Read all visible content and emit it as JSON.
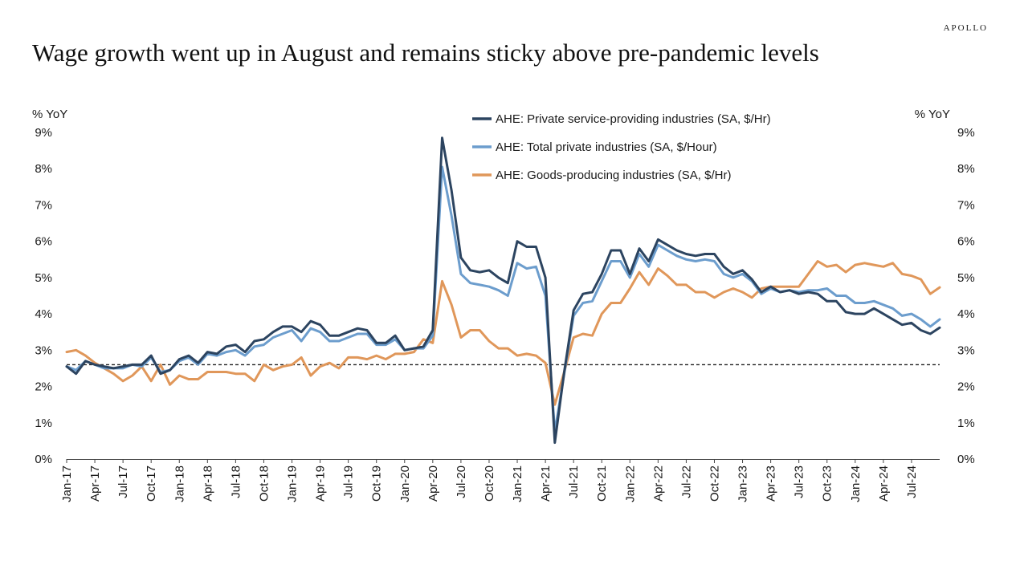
{
  "brand": "APOLLO",
  "title": "Wage growth went up in August and remains sticky above pre-pandemic levels",
  "chart_data": {
    "type": "line",
    "ylabel_left": "% YoY",
    "ylabel_right": "% YoY",
    "ylim": [
      0,
      9
    ],
    "yticks": [
      "0%",
      "1%",
      "2%",
      "3%",
      "4%",
      "5%",
      "6%",
      "7%",
      "8%",
      "9%"
    ],
    "xtick_labels": [
      "Jan-17",
      "Apr-17",
      "Jul-17",
      "Oct-17",
      "Jan-18",
      "Apr-18",
      "Jul-18",
      "Oct-18",
      "Jan-19",
      "Apr-19",
      "Jul-19",
      "Oct-19",
      "Jan-20",
      "Apr-20",
      "Jul-20",
      "Oct-20",
      "Jan-21",
      "Apr-21",
      "Jul-21",
      "Oct-21",
      "Jan-22",
      "Apr-22",
      "Jul-22",
      "Oct-22",
      "Jan-23",
      "Apr-23",
      "Jul-23",
      "Oct-23",
      "Jan-24",
      "Apr-24",
      "Jul-24"
    ],
    "x_start": "Jan-17",
    "x_end": "Aug-24",
    "reference_line": {
      "value": 2.6,
      "style": "dashed"
    },
    "legend_position": "top-center",
    "series": [
      {
        "name": "AHE: Private service-providing industries (SA, $/Hr)",
        "color": "#2c4460",
        "values": [
          2.55,
          2.35,
          2.7,
          2.6,
          2.55,
          2.5,
          2.55,
          2.6,
          2.6,
          2.85,
          2.35,
          2.45,
          2.75,
          2.85,
          2.65,
          2.95,
          2.9,
          3.1,
          3.15,
          2.95,
          3.25,
          3.3,
          3.5,
          3.65,
          3.65,
          3.5,
          3.8,
          3.7,
          3.4,
          3.4,
          3.5,
          3.6,
          3.55,
          3.2,
          3.2,
          3.4,
          3.0,
          3.05,
          3.1,
          3.55,
          8.85,
          7.4,
          5.55,
          5.2,
          5.15,
          5.2,
          5.0,
          4.85,
          6.0,
          5.85,
          5.85,
          5.0,
          0.45,
          2.4,
          4.1,
          4.55,
          4.6,
          5.1,
          5.75,
          5.75,
          5.1,
          5.8,
          5.45,
          6.05,
          5.9,
          5.75,
          5.65,
          5.6,
          5.65,
          5.65,
          5.3,
          5.1,
          5.2,
          4.95,
          4.6,
          4.75,
          4.6,
          4.65,
          4.55,
          4.6,
          4.55,
          4.35,
          4.35,
          4.05,
          4.0,
          4.0,
          4.15,
          4.0,
          3.85,
          3.7,
          3.75,
          3.55,
          3.45,
          3.62
        ]
      },
      {
        "name": "AHE: Total private industries (SA, $/Hour)",
        "color": "#6c9dcd",
        "values": [
          2.55,
          2.45,
          2.7,
          2.6,
          2.5,
          2.5,
          2.5,
          2.6,
          2.55,
          2.8,
          2.4,
          2.45,
          2.7,
          2.8,
          2.6,
          2.9,
          2.85,
          2.95,
          3.0,
          2.85,
          3.1,
          3.15,
          3.35,
          3.45,
          3.55,
          3.25,
          3.6,
          3.5,
          3.25,
          3.25,
          3.35,
          3.45,
          3.45,
          3.15,
          3.15,
          3.3,
          3.0,
          3.05,
          3.05,
          3.4,
          8.05,
          6.7,
          5.1,
          4.85,
          4.8,
          4.75,
          4.65,
          4.5,
          5.4,
          5.25,
          5.3,
          4.5,
          0.75,
          2.35,
          3.95,
          4.3,
          4.35,
          4.9,
          5.45,
          5.45,
          5.0,
          5.65,
          5.3,
          5.9,
          5.75,
          5.6,
          5.5,
          5.45,
          5.5,
          5.45,
          5.1,
          5.0,
          5.1,
          4.9,
          4.55,
          4.7,
          4.6,
          4.65,
          4.6,
          4.65,
          4.65,
          4.7,
          4.5,
          4.5,
          4.3,
          4.3,
          4.35,
          4.25,
          4.15,
          3.95,
          4.0,
          3.85,
          3.65,
          3.85
        ]
      },
      {
        "name": "AHE: Goods-producing industries (SA, $/Hr)",
        "color": "#e0975a",
        "values": [
          2.95,
          3.0,
          2.85,
          2.65,
          2.5,
          2.35,
          2.15,
          2.3,
          2.55,
          2.15,
          2.6,
          2.05,
          2.3,
          2.2,
          2.2,
          2.4,
          2.4,
          2.4,
          2.35,
          2.35,
          2.15,
          2.6,
          2.45,
          2.55,
          2.6,
          2.8,
          2.3,
          2.55,
          2.65,
          2.5,
          2.8,
          2.8,
          2.75,
          2.85,
          2.75,
          2.9,
          2.9,
          2.95,
          3.3,
          3.2,
          4.9,
          4.25,
          3.35,
          3.55,
          3.55,
          3.25,
          3.05,
          3.05,
          2.85,
          2.9,
          2.85,
          2.65,
          1.5,
          2.4,
          3.35,
          3.45,
          3.4,
          4.0,
          4.3,
          4.3,
          4.7,
          5.15,
          4.8,
          5.25,
          5.05,
          4.8,
          4.8,
          4.6,
          4.6,
          4.45,
          4.6,
          4.7,
          4.6,
          4.45,
          4.7,
          4.75,
          4.75,
          4.75,
          4.75,
          5.1,
          5.45,
          5.3,
          5.35,
          5.15,
          5.35,
          5.4,
          5.35,
          5.3,
          5.4,
          5.1,
          5.05,
          4.95,
          4.55,
          4.73
        ]
      }
    ]
  }
}
